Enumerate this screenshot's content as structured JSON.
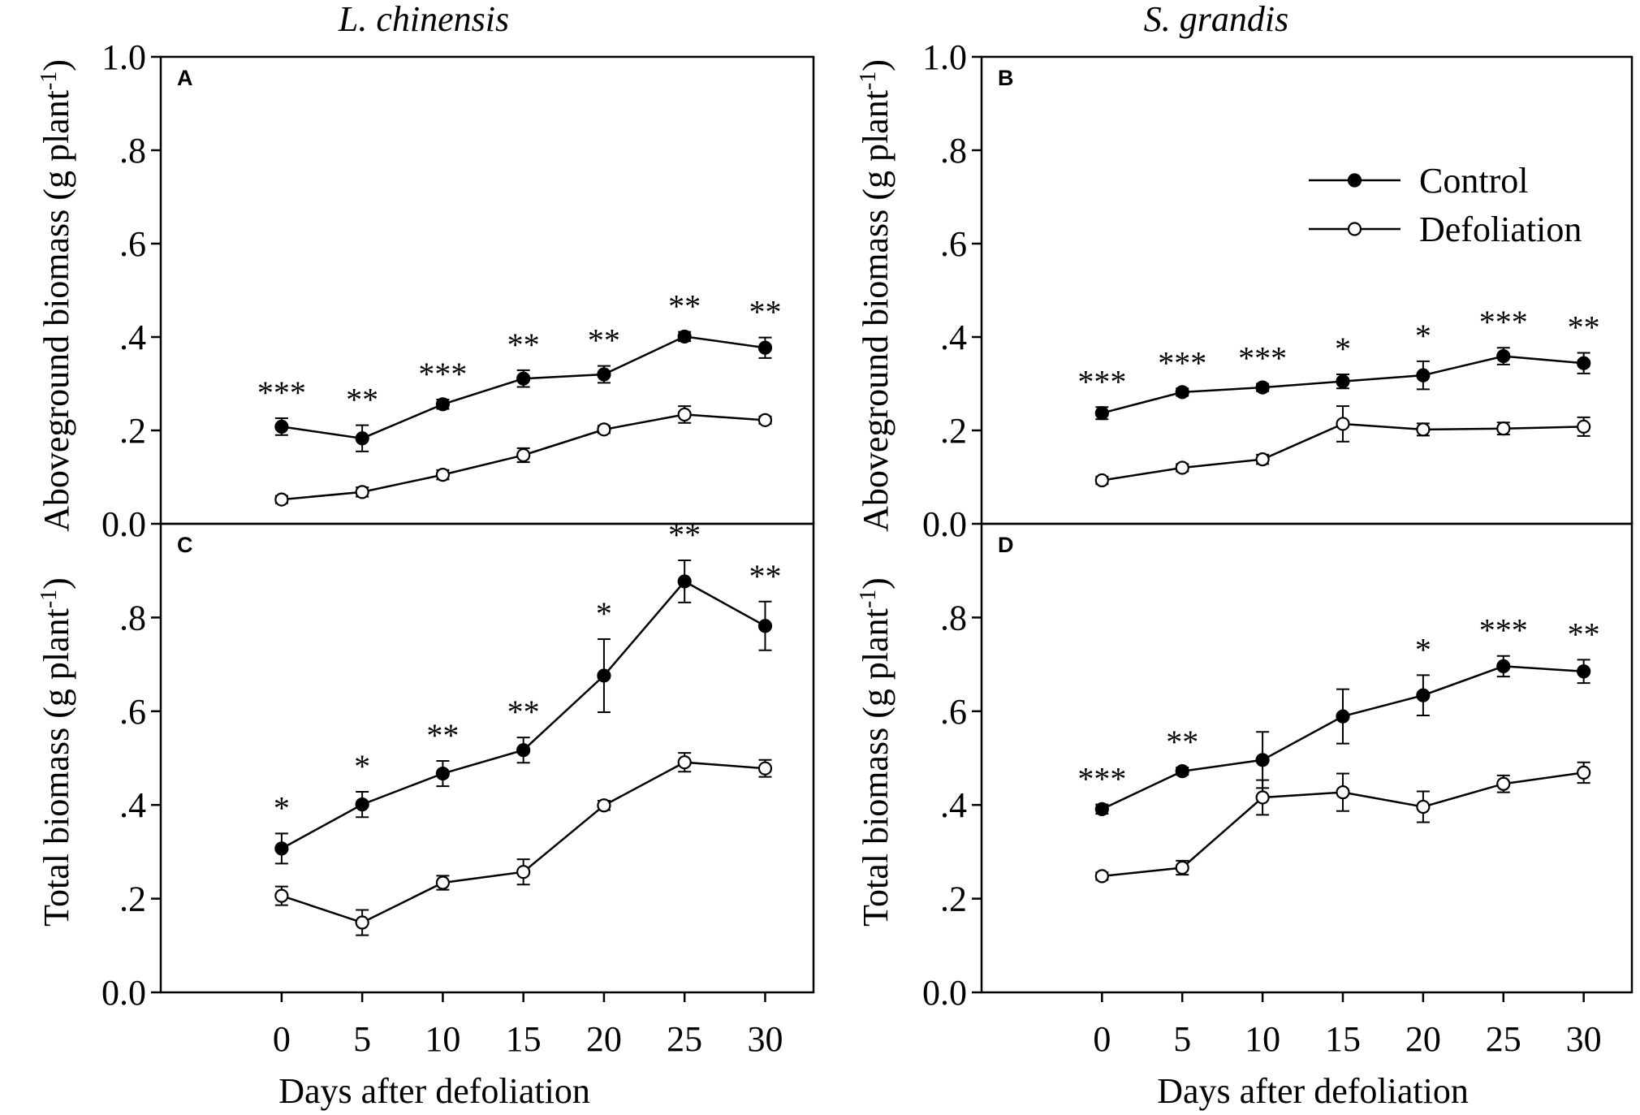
{
  "figure": {
    "x_axis_label": "Days after defoliation",
    "y_axis_label_top": "Aboveground biomass (g plant",
    "y_axis_label_bottom": "Total biomass (g plant",
    "y_axis_unit_sup": "-1",
    "y_axis_unit_close": ")",
    "species_left": "L. chinensis",
    "species_right": "S. grandis",
    "legend": [
      {
        "label": "Control",
        "marker": "filled-circle",
        "color": "#000000"
      },
      {
        "label": "Defoliation",
        "marker": "open-circle",
        "color": "#000000"
      }
    ]
  },
  "chart_data": [
    {
      "panel": "A",
      "type": "line",
      "species": "L. chinensis",
      "xlabel": "Days after defoliation",
      "ylabel": "Aboveground biomass (g plant-1)",
      "xlim": [
        -7.5,
        33
      ],
      "ylim": [
        0,
        1.0
      ],
      "x": [
        0,
        5,
        10,
        15,
        20,
        25,
        30
      ],
      "x_tick_labels": [
        "0",
        "5",
        "10",
        "15",
        "20",
        "25",
        "30"
      ],
      "y_ticks": [
        0,
        0.2,
        0.4,
        0.6,
        0.8,
        1.0
      ],
      "y_tick_labels": [
        "0.0",
        ".2",
        ".4",
        ".6",
        ".8",
        "1.0"
      ],
      "series": [
        {
          "name": "Control",
          "values": [
            0.208,
            0.183,
            0.256,
            0.311,
            0.32,
            0.401,
            0.377
          ],
          "errors": [
            0.018,
            0.028,
            0.01,
            0.018,
            0.018,
            0.01,
            0.022
          ]
        },
        {
          "name": "Defoliation",
          "values": [
            0.052,
            0.068,
            0.105,
            0.147,
            0.202,
            0.234,
            0.222
          ],
          "errors": [
            0.008,
            0.01,
            0.01,
            0.015,
            0.008,
            0.018,
            0.008
          ]
        }
      ],
      "significance": [
        "***",
        "**",
        "***",
        "**",
        "**",
        "**",
        "**"
      ]
    },
    {
      "panel": "B",
      "type": "line",
      "species": "S. grandis",
      "xlabel": "Days after defoliation",
      "ylabel": "Aboveground biomass (g plant-1)",
      "xlim": [
        -7.5,
        33
      ],
      "ylim": [
        0,
        1.0
      ],
      "x": [
        0,
        5,
        10,
        15,
        20,
        25,
        30
      ],
      "x_tick_labels": [
        "0",
        "5",
        "10",
        "15",
        "20",
        "25",
        "30"
      ],
      "y_ticks": [
        0,
        0.2,
        0.4,
        0.6,
        0.8,
        1.0
      ],
      "y_tick_labels": [
        "0.0",
        ".2",
        ".4",
        ".6",
        ".8",
        "1.0"
      ],
      "legend_position": "top-right",
      "series": [
        {
          "name": "Control",
          "values": [
            0.237,
            0.282,
            0.292,
            0.305,
            0.318,
            0.359,
            0.344
          ],
          "errors": [
            0.013,
            0.008,
            0.008,
            0.015,
            0.03,
            0.018,
            0.022
          ]
        },
        {
          "name": "Defoliation",
          "values": [
            0.093,
            0.12,
            0.138,
            0.214,
            0.202,
            0.204,
            0.208
          ],
          "errors": [
            0.008,
            0.008,
            0.01,
            0.038,
            0.013,
            0.013,
            0.02
          ]
        }
      ],
      "significance": [
        "***",
        "***",
        "***",
        "*",
        "*",
        "***",
        "**"
      ]
    },
    {
      "panel": "C",
      "type": "line",
      "species": "L. chinensis",
      "xlabel": "Days after defoliation",
      "ylabel": "Total biomass (g plant-1)",
      "xlim": [
        -7.5,
        33
      ],
      "ylim": [
        0,
        1.0
      ],
      "x": [
        0,
        5,
        10,
        15,
        20,
        25,
        30
      ],
      "x_tick_labels": [
        "0",
        "5",
        "10",
        "15",
        "20",
        "25",
        "30"
      ],
      "y_ticks": [
        0,
        0.2,
        0.4,
        0.6,
        0.8
      ],
      "y_tick_labels": [
        "0.0",
        ".2",
        ".4",
        ".6",
        ".8"
      ],
      "series": [
        {
          "name": "Control",
          "values": [
            0.307,
            0.401,
            0.467,
            0.517,
            0.676,
            0.877,
            0.782
          ],
          "errors": [
            0.032,
            0.027,
            0.027,
            0.027,
            0.078,
            0.045,
            0.052
          ]
        },
        {
          "name": "Defoliation",
          "values": [
            0.206,
            0.149,
            0.234,
            0.257,
            0.399,
            0.491,
            0.478
          ],
          "errors": [
            0.02,
            0.027,
            0.015,
            0.027,
            0.01,
            0.02,
            0.018
          ]
        }
      ],
      "significance": [
        "*",
        "*",
        "**",
        "**",
        "*",
        "**",
        "**"
      ]
    },
    {
      "panel": "D",
      "type": "line",
      "species": "S. grandis",
      "xlabel": "Days after defoliation",
      "ylabel": "Total biomass (g plant-1)",
      "xlim": [
        -7.5,
        33
      ],
      "ylim": [
        0,
        1.0
      ],
      "x": [
        0,
        5,
        10,
        15,
        20,
        25,
        30
      ],
      "x_tick_labels": [
        "0",
        "5",
        "10",
        "15",
        "20",
        "25",
        "30"
      ],
      "y_ticks": [
        0,
        0.2,
        0.4,
        0.6,
        0.8
      ],
      "y_tick_labels": [
        "0.0",
        ".2",
        ".4",
        ".6",
        ".8"
      ],
      "series": [
        {
          "name": "Control",
          "values": [
            0.391,
            0.472,
            0.496,
            0.589,
            0.634,
            0.696,
            0.685
          ],
          "errors": [
            0.01,
            0.008,
            0.06,
            0.058,
            0.043,
            0.022,
            0.025
          ]
        },
        {
          "name": "Defoliation",
          "values": [
            0.248,
            0.266,
            0.416,
            0.427,
            0.396,
            0.445,
            0.469
          ],
          "errors": [
            0.008,
            0.015,
            0.037,
            0.04,
            0.033,
            0.018,
            0.022
          ]
        }
      ],
      "significance": [
        "***",
        "**",
        "",
        "",
        "*",
        "***",
        "**"
      ]
    }
  ]
}
